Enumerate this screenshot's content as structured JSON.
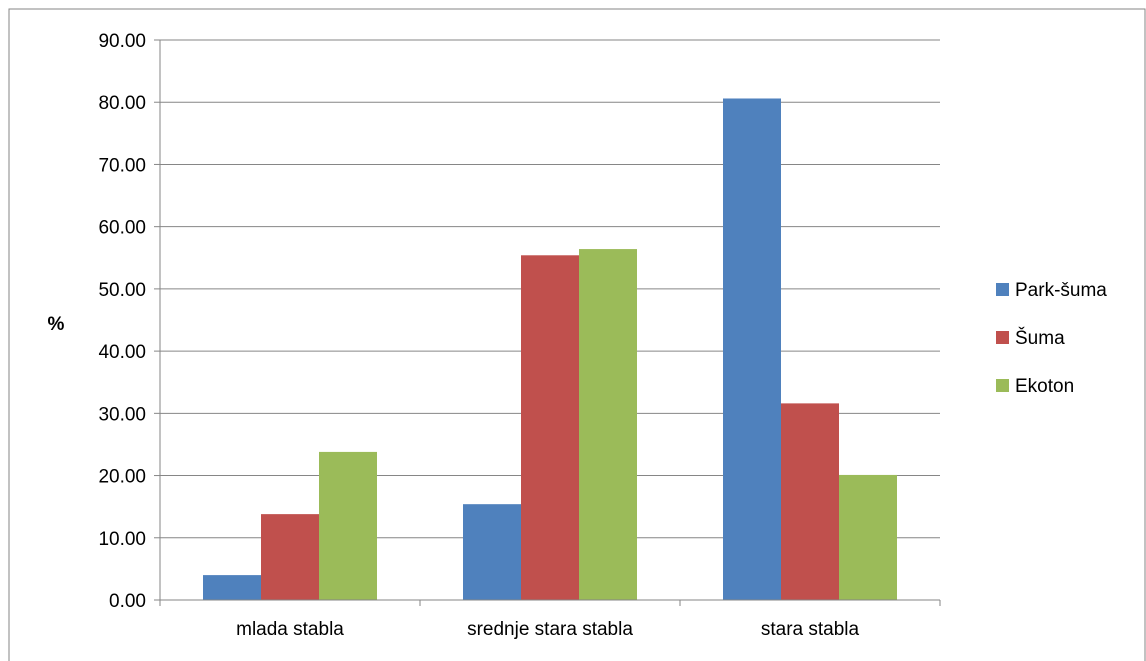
{
  "chart_data": {
    "type": "bar",
    "title": "",
    "xlabel": "",
    "ylabel": "%",
    "categories": [
      "mlada stabla",
      "srednje stara stabla",
      "stara stabla"
    ],
    "series": [
      {
        "name": "Park-šuma",
        "color": "#4f81bd",
        "values": [
          4.0,
          15.4,
          80.6
        ]
      },
      {
        "name": "Šuma",
        "color": "#c0504d",
        "values": [
          13.8,
          55.4,
          31.6
        ]
      },
      {
        "name": "Ekoton",
        "color": "#9bbb59",
        "values": [
          23.8,
          56.4,
          20.1
        ]
      }
    ],
    "ylim": [
      0,
      90
    ],
    "y_ticks": [
      "0.00",
      "10.00",
      "20.00",
      "30.00",
      "40.00",
      "50.00",
      "60.00",
      "70.00",
      "80.00",
      "90.00"
    ],
    "grid": true,
    "legend_position": "right"
  }
}
